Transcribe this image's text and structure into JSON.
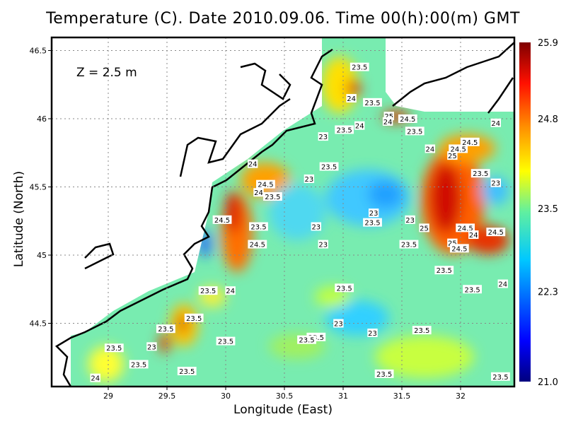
{
  "chart_data": {
    "type": "heatmap",
    "title": "Temperature (C). Date 2010.09.06. Time 00(h):00(m) GMT",
    "xlabel": "Longitude (East)",
    "ylabel": "Latitude (North)",
    "annotation": "Z = 2.5 m",
    "xlim": [
      28.6,
      32.5
    ],
    "ylim": [
      44.0,
      46.55
    ],
    "xticks": [
      "29",
      "29.5",
      "30",
      "30.5",
      "31",
      "31.5",
      "32"
    ],
    "yticks": [
      "44.5",
      "45",
      "45.5",
      "46",
      "46.5"
    ],
    "grid": true,
    "colorbar": {
      "ticks": [
        "25.9",
        "24.8",
        "23.5",
        "22.3",
        "21.0"
      ],
      "range": [
        21.0,
        25.9
      ],
      "colormap": "jet"
    },
    "contour_labels": [
      {
        "text": "23.5",
        "lon": 31.14,
        "lat": 46.38
      },
      {
        "text": "24",
        "lon": 31.07,
        "lat": 46.15
      },
      {
        "text": "23.5",
        "lon": 31.25,
        "lat": 46.12
      },
      {
        "text": "25",
        "lon": 31.39,
        "lat": 46.02
      },
      {
        "text": "24.5",
        "lon": 31.55,
        "lat": 46.0
      },
      {
        "text": "24",
        "lon": 31.38,
        "lat": 45.98
      },
      {
        "text": "24",
        "lon": 31.14,
        "lat": 45.95
      },
      {
        "text": "23.5",
        "lon": 31.01,
        "lat": 45.92
      },
      {
        "text": "23.5",
        "lon": 31.61,
        "lat": 45.91
      },
      {
        "text": "24",
        "lon": 32.3,
        "lat": 45.97
      },
      {
        "text": "23",
        "lon": 30.83,
        "lat": 45.87
      },
      {
        "text": "24",
        "lon": 31.74,
        "lat": 45.78
      },
      {
        "text": "25",
        "lon": 31.93,
        "lat": 45.73
      },
      {
        "text": "24.5",
        "lon": 31.98,
        "lat": 45.78
      },
      {
        "text": "24.5",
        "lon": 32.08,
        "lat": 45.83
      },
      {
        "text": "23.5",
        "lon": 30.88,
        "lat": 45.65
      },
      {
        "text": "24",
        "lon": 30.23,
        "lat": 45.67
      },
      {
        "text": "24.5",
        "lon": 30.34,
        "lat": 45.52
      },
      {
        "text": "23",
        "lon": 30.71,
        "lat": 45.56
      },
      {
        "text": "23.5",
        "lon": 32.17,
        "lat": 45.6
      },
      {
        "text": "23",
        "lon": 32.3,
        "lat": 45.53
      },
      {
        "text": "24",
        "lon": 30.28,
        "lat": 45.46
      },
      {
        "text": "23.5",
        "lon": 30.4,
        "lat": 45.43
      },
      {
        "text": "24.5",
        "lon": 29.97,
        "lat": 45.26
      },
      {
        "text": "23.5",
        "lon": 30.28,
        "lat": 45.21
      },
      {
        "text": "23",
        "lon": 30.77,
        "lat": 45.21
      },
      {
        "text": "23",
        "lon": 31.26,
        "lat": 45.31
      },
      {
        "text": "23.5",
        "lon": 31.25,
        "lat": 45.24
      },
      {
        "text": "23",
        "lon": 31.57,
        "lat": 45.26
      },
      {
        "text": "25",
        "lon": 31.69,
        "lat": 45.2
      },
      {
        "text": "24.5",
        "lon": 32.04,
        "lat": 45.2
      },
      {
        "text": "24",
        "lon": 32.11,
        "lat": 45.15
      },
      {
        "text": "24.5",
        "lon": 32.3,
        "lat": 45.17
      },
      {
        "text": "23",
        "lon": 30.83,
        "lat": 45.08
      },
      {
        "text": "24.5",
        "lon": 30.27,
        "lat": 45.08
      },
      {
        "text": "23.5",
        "lon": 31.56,
        "lat": 45.08
      },
      {
        "text": "25",
        "lon": 31.93,
        "lat": 45.09
      },
      {
        "text": "24.5",
        "lon": 31.99,
        "lat": 45.05
      },
      {
        "text": "23.5",
        "lon": 31.86,
        "lat": 44.89
      },
      {
        "text": "23.5",
        "lon": 29.85,
        "lat": 44.74
      },
      {
        "text": "24",
        "lon": 30.04,
        "lat": 44.74
      },
      {
        "text": "23.5",
        "lon": 32.1,
        "lat": 44.75
      },
      {
        "text": "24",
        "lon": 32.36,
        "lat": 44.79
      },
      {
        "text": "23.5",
        "lon": 31.01,
        "lat": 44.76
      },
      {
        "text": "23",
        "lon": 30.96,
        "lat": 44.5
      },
      {
        "text": "23",
        "lon": 31.25,
        "lat": 44.43
      },
      {
        "text": "23.5",
        "lon": 31.67,
        "lat": 44.45
      },
      {
        "text": "23.5",
        "lon": 30.77,
        "lat": 44.4
      },
      {
        "text": "23.5",
        "lon": 30.69,
        "lat": 44.38
      },
      {
        "text": "23.5",
        "lon": 29.49,
        "lat": 44.46
      },
      {
        "text": "23.5",
        "lon": 29.73,
        "lat": 44.54
      },
      {
        "text": "23",
        "lon": 29.37,
        "lat": 44.33
      },
      {
        "text": "23.5",
        "lon": 29.05,
        "lat": 44.32
      },
      {
        "text": "23.5",
        "lon": 30.0,
        "lat": 44.37
      },
      {
        "text": "23.5",
        "lon": 29.26,
        "lat": 44.2
      },
      {
        "text": "23.5",
        "lon": 29.67,
        "lat": 44.15
      },
      {
        "text": "24",
        "lon": 28.89,
        "lat": 44.1
      },
      {
        "text": "23.5",
        "lon": 31.35,
        "lat": 44.13
      },
      {
        "text": "23.5",
        "lon": 32.34,
        "lat": 44.11
      }
    ]
  }
}
